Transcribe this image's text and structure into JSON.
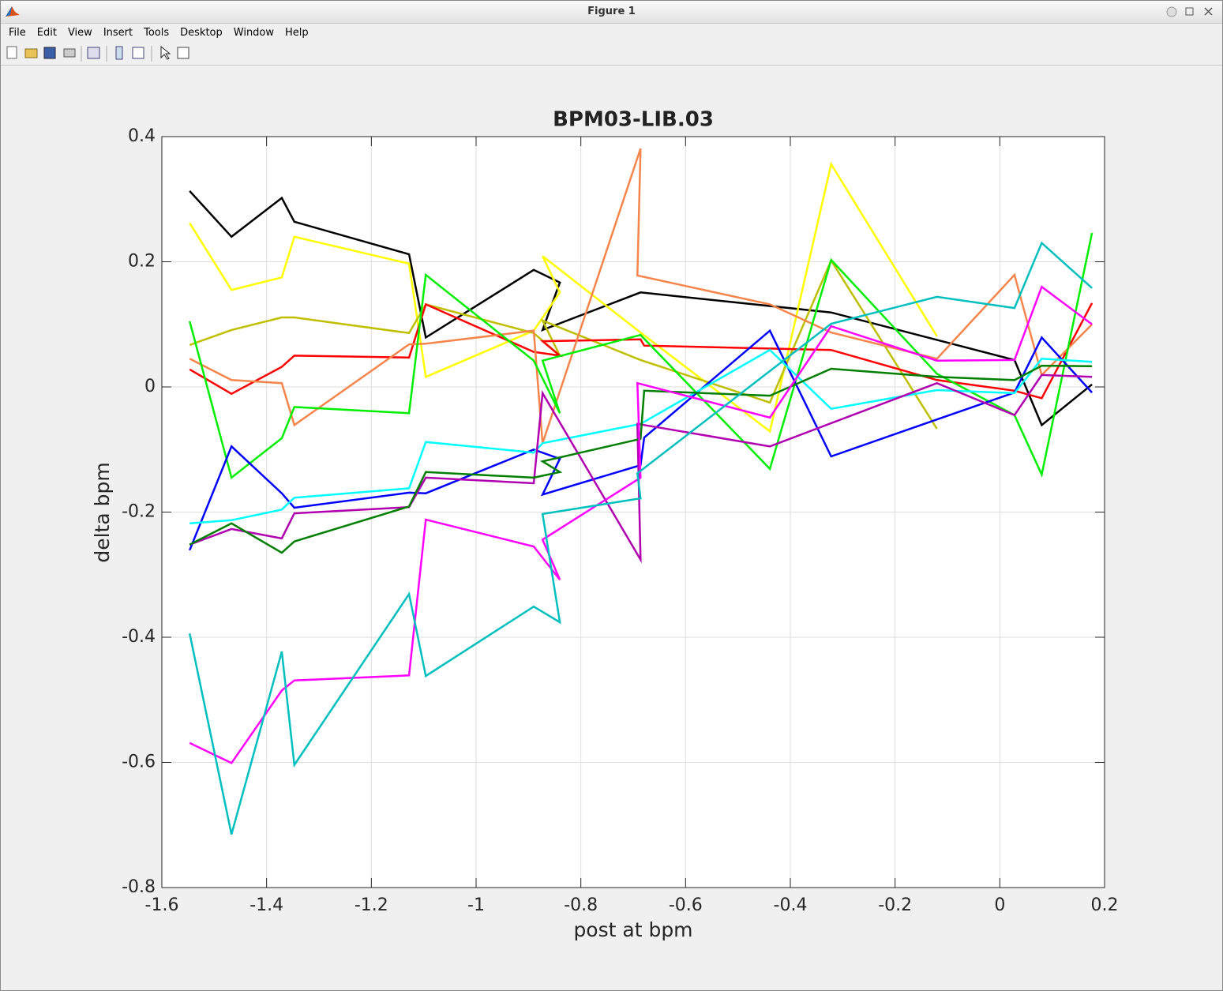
{
  "window": {
    "title": "Figure 1",
    "menu": [
      "File",
      "Edit",
      "View",
      "Insert",
      "Tools",
      "Desktop",
      "Window",
      "Help"
    ]
  },
  "chart_data": {
    "type": "line",
    "title": "BPM03-LIB.03",
    "x_label": "post at bpm",
    "y_label": "delta bpm",
    "xlim": [
      -1.6,
      0.2
    ],
    "ylim": [
      -0.8,
      0.4
    ],
    "xticks": [
      -1.6,
      -1.4,
      -1.2,
      -1,
      -0.8,
      -0.6,
      -0.4,
      -0.2,
      0,
      0.2
    ],
    "yticks": [
      -0.8,
      -0.6,
      -0.4,
      -0.2,
      0,
      0.2,
      0.4
    ],
    "grid": true,
    "series": [
      {
        "color": "#000000",
        "x": [
          -1.547,
          -1.467,
          -1.371,
          -1.347,
          -1.128,
          -1.096,
          -0.89,
          -0.84,
          -0.873,
          -0.686,
          -0.322,
          0.028,
          0.08,
          0.176
        ],
        "values": [
          0.313,
          0.24,
          0.302,
          0.264,
          0.212,
          0.079,
          0.187,
          0.167,
          0.091,
          0.151,
          0.119,
          0.043,
          -0.061,
          0.004
        ]
      },
      {
        "color": "#ffff00",
        "x": [
          -1.547,
          -1.467,
          -1.371,
          -1.347,
          -1.128,
          -1.096,
          -0.89,
          -0.84,
          -0.873,
          -0.686,
          -0.439,
          -0.322,
          -0.12
        ],
        "values": [
          0.262,
          0.155,
          0.175,
          0.24,
          0.197,
          0.016,
          0.09,
          0.151,
          0.209,
          0.087,
          -0.071,
          0.356,
          0.081
        ]
      },
      {
        "color": "#bfbf00",
        "x": [
          -1.547,
          -1.467,
          -1.371,
          -1.347,
          -1.128,
          -1.096,
          -0.89,
          -0.84,
          -0.873,
          -0.686,
          -0.439,
          -0.322,
          -0.12
        ],
        "values": [
          0.067,
          0.091,
          0.111,
          0.111,
          0.086,
          0.132,
          0.086,
          0.05,
          0.106,
          0.043,
          -0.025,
          0.202,
          -0.067
        ]
      },
      {
        "color": "#ff0000",
        "x": [
          -1.547,
          -1.467,
          -1.371,
          -1.347,
          -1.128,
          -1.096,
          -0.89,
          -0.84,
          -0.873,
          -0.686,
          -0.679,
          -0.322,
          -0.12,
          0.028,
          0.08,
          0.176
        ],
        "values": [
          0.028,
          -0.011,
          0.032,
          0.05,
          0.047,
          0.132,
          0.056,
          0.05,
          0.073,
          0.076,
          0.066,
          0.059,
          0.011,
          -0.006,
          -0.018,
          0.134
        ]
      },
      {
        "color": "#f5854a",
        "x": [
          -1.547,
          -1.467,
          -1.371,
          -1.347,
          -1.128,
          -1.096,
          -0.89,
          -0.873,
          -0.686,
          -0.692,
          -0.439,
          -0.322,
          -0.12,
          0.028,
          0.08,
          0.176
        ],
        "values": [
          0.045,
          0.011,
          0.006,
          -0.061,
          0.068,
          0.069,
          0.09,
          -0.09,
          0.381,
          0.178,
          0.132,
          0.087,
          0.045,
          0.179,
          0.019,
          0.1
        ]
      },
      {
        "color": "#00ee00",
        "x": [
          -1.547,
          -1.467,
          -1.371,
          -1.347,
          -1.128,
          -1.096,
          -0.89,
          -0.84,
          -0.873,
          -0.686,
          -0.439,
          -0.322,
          -0.12,
          0.028,
          0.08,
          0.176
        ],
        "values": [
          0.105,
          -0.145,
          -0.082,
          -0.032,
          -0.042,
          0.179,
          0.042,
          -0.042,
          0.042,
          0.083,
          -0.131,
          0.203,
          0.021,
          -0.045,
          -0.14,
          0.246
        ]
      },
      {
        "color": "#0000ff",
        "x": [
          -1.547,
          -1.467,
          -1.371,
          -1.347,
          -1.128,
          -1.096,
          -0.89,
          -0.84,
          -0.873,
          -0.686,
          -0.679,
          -0.439,
          -0.322,
          -0.12,
          0.028,
          0.08,
          0.176
        ],
        "values": [
          -0.261,
          -0.095,
          -0.17,
          -0.193,
          -0.169,
          -0.17,
          -0.1,
          -0.115,
          -0.172,
          -0.125,
          -0.081,
          0.09,
          -0.111,
          -0.052,
          -0.009,
          0.079,
          -0.009
        ]
      },
      {
        "color": "#00ffff",
        "x": [
          -1.547,
          -1.467,
          -1.371,
          -1.347,
          -1.128,
          -1.096,
          -0.89,
          -0.873,
          -0.686,
          -0.439,
          -0.322,
          -0.12,
          0.028,
          0.08,
          0.176
        ],
        "values": [
          -0.218,
          -0.213,
          -0.196,
          -0.177,
          -0.162,
          -0.088,
          -0.105,
          -0.09,
          -0.059,
          0.059,
          -0.035,
          -0.005,
          -0.01,
          0.045,
          0.04
        ]
      },
      {
        "color": "#b000b0",
        "x": [
          -1.547,
          -1.467,
          -1.371,
          -1.347,
          -1.128,
          -1.096,
          -0.89,
          -0.873,
          -0.686,
          -0.692,
          -0.439,
          -0.12,
          0.028,
          0.08,
          0.176
        ],
        "values": [
          -0.252,
          -0.227,
          -0.242,
          -0.202,
          -0.192,
          -0.145,
          -0.154,
          -0.01,
          -0.276,
          -0.059,
          -0.095,
          0.006,
          -0.045,
          0.019,
          0.016
        ]
      },
      {
        "color": "#007f00",
        "x": [
          -1.547,
          -1.467,
          -1.371,
          -1.347,
          -1.128,
          -1.096,
          -0.89,
          -0.84,
          -0.873,
          -0.686,
          -0.679,
          -0.439,
          -0.322,
          -0.12,
          0.028,
          0.08,
          0.176
        ],
        "values": [
          -0.252,
          -0.218,
          -0.265,
          -0.247,
          -0.191,
          -0.136,
          -0.145,
          -0.136,
          -0.119,
          -0.083,
          -0.006,
          -0.014,
          0.029,
          0.016,
          0.011,
          0.034,
          0.033
        ]
      },
      {
        "color": "#ff00ff",
        "x": [
          -1.547,
          -1.467,
          -1.371,
          -1.347,
          -1.128,
          -1.096,
          -0.89,
          -0.84,
          -0.873,
          -0.686,
          -0.692,
          -0.439,
          -0.322,
          -0.12,
          0.028,
          0.08,
          0.176
        ],
        "values": [
          -0.569,
          -0.601,
          -0.485,
          -0.469,
          -0.461,
          -0.212,
          -0.255,
          -0.308,
          -0.244,
          -0.145,
          0.006,
          -0.049,
          0.097,
          0.042,
          0.043,
          0.16,
          0.1
        ]
      },
      {
        "color": "#00bfbf",
        "x": [
          -1.547,
          -1.467,
          -1.371,
          -1.347,
          -1.128,
          -1.096,
          -0.89,
          -0.84,
          -0.873,
          -0.686,
          -0.692,
          -0.322,
          -0.12,
          0.028,
          0.08,
          0.176
        ],
        "values": [
          -0.394,
          -0.715,
          -0.423,
          -0.604,
          -0.331,
          -0.462,
          -0.351,
          -0.376,
          -0.203,
          -0.178,
          -0.138,
          0.101,
          0.144,
          0.126,
          0.23,
          0.158
        ]
      }
    ]
  }
}
